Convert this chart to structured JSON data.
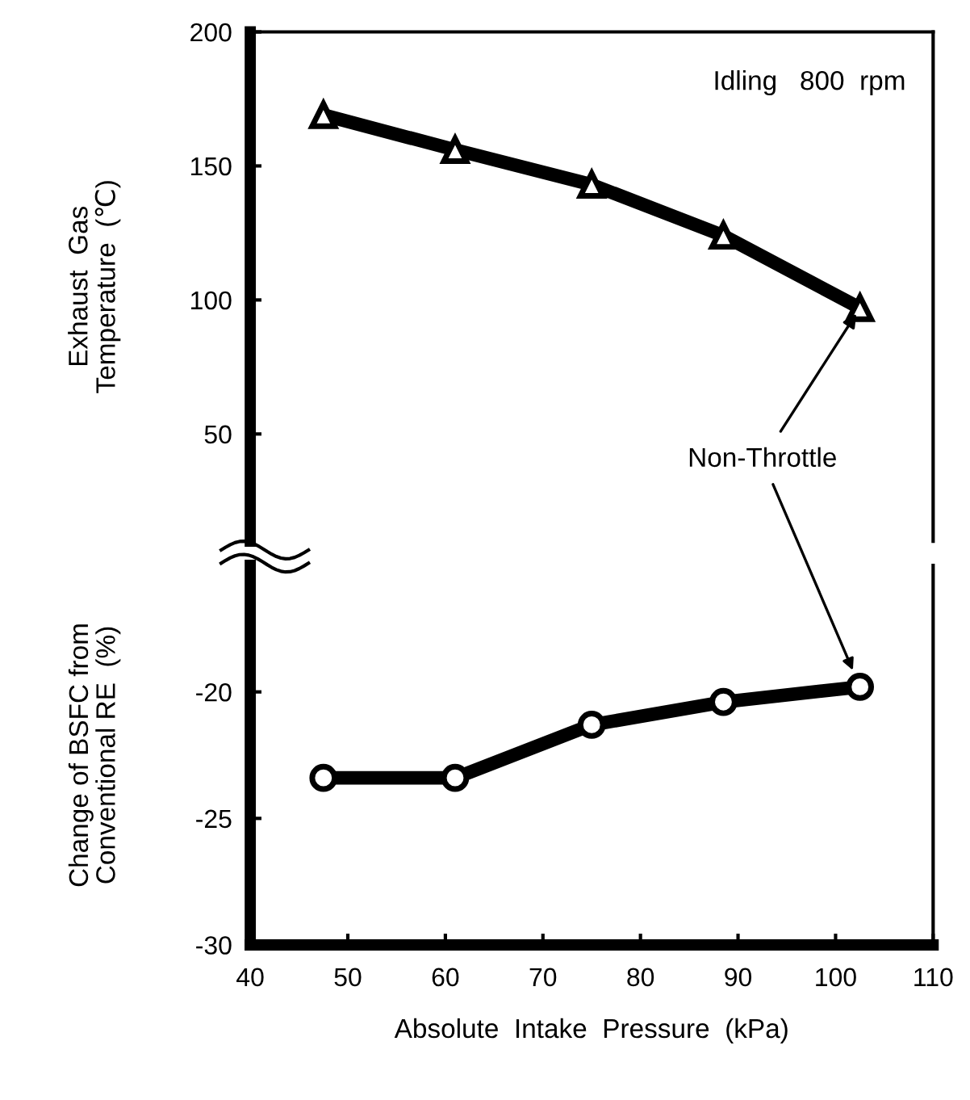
{
  "chart_data": [
    {
      "type": "line",
      "ylabel": "Exhaust  Gas\nTemperature  (℃)",
      "x": [
        47.5,
        61,
        75,
        88.5,
        102.5
      ],
      "series": [
        {
          "color": "#000000",
          "values": [
            169,
            156,
            143,
            124,
            97
          ]
        }
      ],
      "marker": "triangle",
      "line_style": "solid",
      "xlim": [
        40,
        110
      ],
      "xticks": [
        40,
        50,
        60,
        70,
        80,
        90,
        100,
        110
      ],
      "ylim": [
        10,
        200
      ],
      "yticks": [
        50,
        100,
        150,
        200
      ],
      "tick_labels": "y",
      "grid": false,
      "legend": false,
      "annotations": [
        "Idling   800  rpm",
        {
          "text": "Non-Throttle",
          "x": 102.5,
          "y": 97
        }
      ]
    },
    {
      "type": "line",
      "ylabel": "Change of BSFC from\nConventional RE  (%)",
      "xlabel": "Absolute  Intake  Pressure  (kPa)",
      "x": [
        47.5,
        61,
        75,
        88.5,
        102.5
      ],
      "series": [
        {
          "color": "#000000",
          "values": [
            -23.4,
            -23.4,
            -21.3,
            -20.4,
            -19.8
          ]
        }
      ],
      "marker": "circle",
      "line_style": "solid",
      "xlim": [
        40,
        110
      ],
      "xticks": [
        40,
        50,
        60,
        70,
        80,
        90,
        100,
        110
      ],
      "ylim": [
        -30,
        -15
      ],
      "yticks": [
        -30,
        -25,
        -20
      ],
      "grid": false,
      "legend": false
    }
  ]
}
